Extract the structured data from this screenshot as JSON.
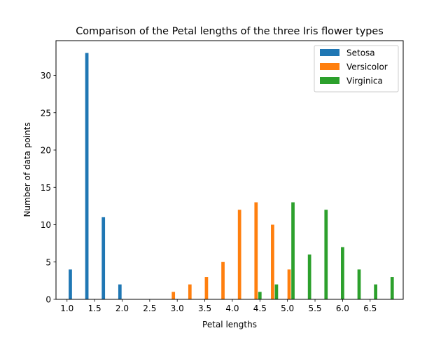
{
  "chart_data": {
    "type": "bar",
    "title": "Comparison of the Petal lengths of the three Iris flower types",
    "xlabel": "Petal lengths",
    "ylabel": "Number of data points",
    "xlim": [
      0.8,
      7.1
    ],
    "ylim": [
      0,
      34.65
    ],
    "x_ticks": [
      1.0,
      1.5,
      2.0,
      2.5,
      3.0,
      3.5,
      4.0,
      4.5,
      5.0,
      5.5,
      6.0,
      6.5
    ],
    "x_tick_labels": [
      "1.0",
      "1.5",
      "2.0",
      "2.5",
      "3.0",
      "3.5",
      "4.0",
      "4.5",
      "5.0",
      "5.5",
      "6.0",
      "6.5"
    ],
    "y_ticks": [
      0,
      5,
      10,
      15,
      20,
      25,
      30
    ],
    "y_tick_labels": [
      "0",
      "5",
      "10",
      "15",
      "20",
      "25",
      "30"
    ],
    "grid": false,
    "legend_position": "top-right",
    "bar_width": 0.06,
    "series": [
      {
        "name": "Setosa",
        "color": "#1f77b4",
        "x": [
          1.06,
          1.36,
          1.66,
          1.96
        ],
        "values": [
          4,
          33,
          11,
          2
        ]
      },
      {
        "name": "Versicolor",
        "color": "#ff7f0e",
        "x": [
          2.93,
          3.23,
          3.53,
          3.83,
          4.13,
          4.43,
          4.73,
          5.03
        ],
        "values": [
          1,
          2,
          3,
          5,
          12,
          13,
          10,
          4
        ]
      },
      {
        "name": "Virginica",
        "color": "#2ca02c",
        "x": [
          4.5,
          4.8,
          5.1,
          5.4,
          5.7,
          6.0,
          6.3,
          6.6,
          6.9
        ],
        "values": [
          1,
          2,
          13,
          6,
          12,
          7,
          4,
          2,
          3
        ]
      }
    ]
  }
}
